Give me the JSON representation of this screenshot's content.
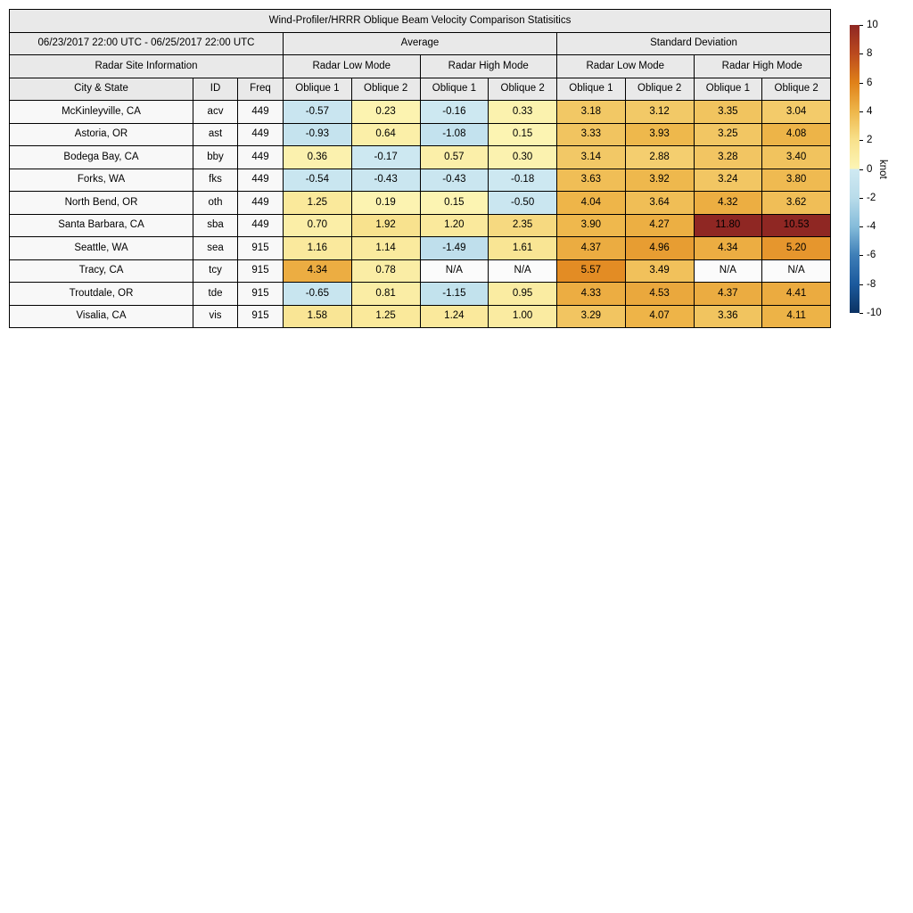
{
  "chart_data": {
    "type": "heatmap",
    "title": "Wind-Profiler/HRRR Oblique Beam Velocity Comparison Statisitics",
    "header": {
      "date_range": "06/23/2017 22:00 UTC - 06/25/2017 22:00 UTC",
      "avg_label": "Average",
      "std_label": "Standard Deviation",
      "site_info_label": "Radar Site Information",
      "mode_labels": [
        "Radar Low Mode",
        "Radar High Mode",
        "Radar Low Mode",
        "Radar High Mode"
      ],
      "columns": [
        "City & State",
        "ID",
        "Freq",
        "Oblique 1",
        "Oblique 2",
        "Oblique 1",
        "Oblique 2",
        "Oblique 1",
        "Oblique 2",
        "Oblique 1",
        "Oblique 2"
      ]
    },
    "rows": [
      {
        "city": "McKinleyville, CA",
        "id": "acv",
        "freq": "449",
        "values": [
          "-0.57",
          "0.23",
          "-0.16",
          "0.33",
          "3.18",
          "3.12",
          "3.35",
          "3.04"
        ]
      },
      {
        "city": "Astoria, OR",
        "id": "ast",
        "freq": "449",
        "values": [
          "-0.93",
          "0.64",
          "-1.08",
          "0.15",
          "3.33",
          "3.93",
          "3.25",
          "4.08"
        ]
      },
      {
        "city": "Bodega Bay, CA",
        "id": "bby",
        "freq": "449",
        "values": [
          "0.36",
          "-0.17",
          "0.57",
          "0.30",
          "3.14",
          "2.88",
          "3.28",
          "3.40"
        ]
      },
      {
        "city": "Forks, WA",
        "id": "fks",
        "freq": "449",
        "values": [
          "-0.54",
          "-0.43",
          "-0.43",
          "-0.18",
          "3.63",
          "3.92",
          "3.24",
          "3.80"
        ]
      },
      {
        "city": "North Bend, OR",
        "id": "oth",
        "freq": "449",
        "values": [
          "1.25",
          "0.19",
          "0.15",
          "-0.50",
          "4.04",
          "3.64",
          "4.32",
          "3.62"
        ]
      },
      {
        "city": "Santa Barbara, CA",
        "id": "sba",
        "freq": "449",
        "values": [
          "0.70",
          "1.92",
          "1.20",
          "2.35",
          "3.90",
          "4.27",
          "11.80",
          "10.53"
        ]
      },
      {
        "city": "Seattle, WA",
        "id": "sea",
        "freq": "915",
        "values": [
          "1.16",
          "1.14",
          "-1.49",
          "1.61",
          "4.37",
          "4.96",
          "4.34",
          "5.20"
        ]
      },
      {
        "city": "Tracy, CA",
        "id": "tcy",
        "freq": "915",
        "values": [
          "4.34",
          "0.78",
          "N/A",
          "N/A",
          "5.57",
          "3.49",
          "N/A",
          "N/A"
        ]
      },
      {
        "city": "Troutdale, OR",
        "id": "tde",
        "freq": "915",
        "values": [
          "-0.65",
          "0.81",
          "-1.15",
          "0.95",
          "4.33",
          "4.53",
          "4.37",
          "4.41"
        ]
      },
      {
        "city": "Visalia, CA",
        "id": "vis",
        "freq": "915",
        "values": [
          "1.58",
          "1.25",
          "1.24",
          "1.00",
          "3.29",
          "4.07",
          "3.36",
          "4.11"
        ]
      }
    ],
    "colorbar": {
      "label": "knot",
      "min": -10,
      "max": 10,
      "ticks": [
        "10",
        "8",
        "6",
        "4",
        "2",
        "0",
        "-2",
        "-4",
        "-6",
        "-8",
        "-10"
      ],
      "anchors": [
        [
          -10,
          "#0b3263"
        ],
        [
          -8,
          "#1c5a9d"
        ],
        [
          -6,
          "#3e7eb7"
        ],
        [
          -4,
          "#85bcda"
        ],
        [
          -2,
          "#b9dcea"
        ],
        [
          -0.01,
          "#cfe9f2"
        ],
        [
          0.01,
          "#fcf5b5"
        ],
        [
          2,
          "#f8e18c"
        ],
        [
          4,
          "#eeb64a"
        ],
        [
          6,
          "#e08119"
        ],
        [
          8,
          "#bb4a1e"
        ],
        [
          10,
          "#8f2723"
        ]
      ]
    }
  },
  "colors": {
    "border": "#000000",
    "header_bg": "#e9e9e9",
    "row_bg": "#f8f8f8",
    "na_bg": "#fbfbfb",
    "text": "#000000",
    "page_bg": "#ffffff"
  }
}
